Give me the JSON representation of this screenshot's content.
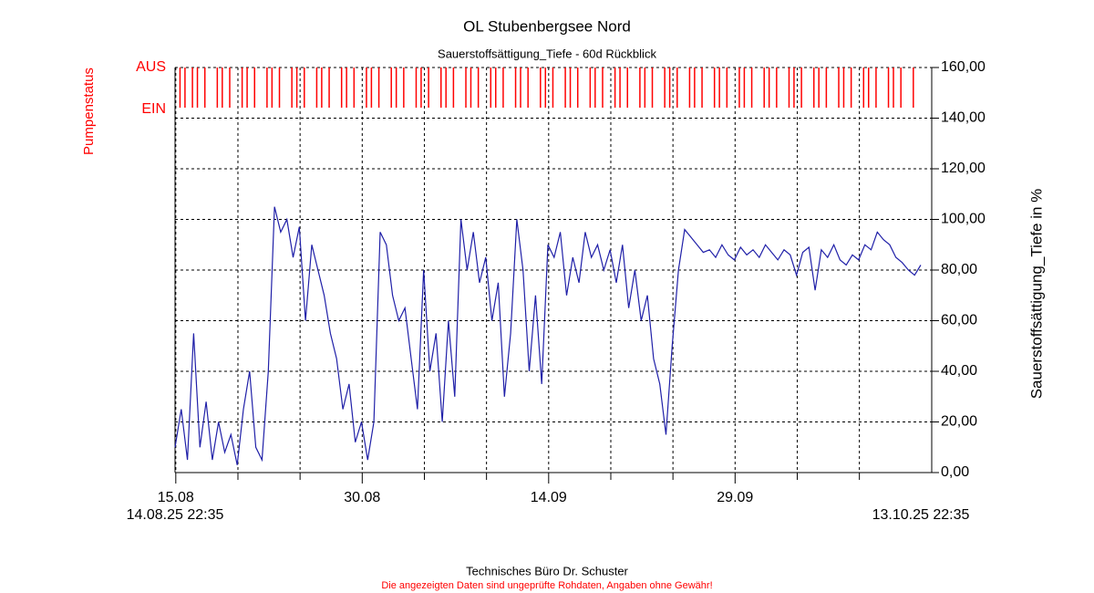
{
  "chart_data": {
    "type": "line",
    "title": "OL Stubenbergsee Nord",
    "subtitle": "Sauerstoffsättigung_Tiefe - 60d Rückblick",
    "y_label": "Sauerstoffsättigung_Tiefe in %",
    "footer": "Technisches Büro Dr. Schuster",
    "disclaimer": "Die angezeigten Daten sind ungeprüfte Rohdaten, Angaben ohne Gewähr!",
    "xlim": [
      0,
      60
    ],
    "xlim_labels": [
      "14.08.25 22:35",
      "13.10.25 22:35"
    ],
    "xticks": [
      {
        "value": 0.06,
        "label": "15.08"
      },
      {
        "value": 15.06,
        "label": "30.08"
      },
      {
        "value": 30.06,
        "label": "14.09"
      },
      {
        "value": 45.06,
        "label": "29.09"
      }
    ],
    "xminorticks": [
      5.06,
      10.06,
      20.06,
      25.06,
      35.06,
      40.06,
      50.06,
      55.06
    ],
    "ylim": [
      0,
      160
    ],
    "yticks": [
      {
        "value": 0,
        "label": "0,00"
      },
      {
        "value": 20,
        "label": "20,00"
      },
      {
        "value": 40,
        "label": "40,00"
      },
      {
        "value": 60,
        "label": "60,00"
      },
      {
        "value": 80,
        "label": "80,00"
      },
      {
        "value": 100,
        "label": "100,00"
      },
      {
        "value": 120,
        "label": "120,00"
      },
      {
        "value": 140,
        "label": "140,00"
      },
      {
        "value": 160,
        "label": "160,00"
      }
    ],
    "grid": true,
    "series": [
      {
        "name": "Sauerstoffsättigung_Tiefe",
        "color": "#2020a8",
        "x": [
          0,
          0.5,
          1,
          1.5,
          2,
          2.5,
          3,
          3.5,
          4,
          4.5,
          5,
          5.5,
          6,
          6.5,
          7,
          7.5,
          8,
          8.5,
          9,
          9.5,
          10,
          10.5,
          11,
          11.5,
          12,
          12.5,
          13,
          13.5,
          14,
          14.5,
          15,
          15.5,
          16,
          16.5,
          17,
          17.5,
          18,
          18.5,
          19,
          19.5,
          20,
          20.5,
          21,
          21.5,
          22,
          22.5,
          23,
          23.5,
          24,
          24.5,
          25,
          25.5,
          26,
          26.5,
          27,
          27.5,
          28,
          28.5,
          29,
          29.5,
          30,
          30.5,
          31,
          31.5,
          32,
          32.5,
          33,
          33.5,
          34,
          34.5,
          35,
          35.5,
          36,
          36.5,
          37,
          37.5,
          38,
          38.5,
          39,
          39.5,
          40,
          40.5,
          41,
          41.5,
          42,
          42.5,
          43,
          43.5,
          44,
          44.5,
          45,
          45.5,
          46,
          46.5,
          47,
          47.5,
          48,
          48.5,
          49,
          49.5,
          50,
          50.5,
          51,
          51.5,
          52,
          52.5,
          53,
          53.5,
          54,
          54.5,
          55,
          55.5,
          56,
          56.5,
          57,
          57.5,
          58,
          58.5,
          59,
          59.5,
          60
        ],
        "values": [
          10,
          25,
          5,
          55,
          10,
          28,
          5,
          20,
          8,
          15,
          3,
          25,
          40,
          10,
          5,
          40,
          105,
          95,
          100,
          85,
          97,
          60,
          90,
          80,
          70,
          55,
          45,
          25,
          35,
          12,
          20,
          5,
          20,
          95,
          90,
          70,
          60,
          65,
          45,
          25,
          80,
          40,
          55,
          20,
          60,
          30,
          100,
          80,
          95,
          75,
          85,
          60,
          75,
          30,
          55,
          100,
          80,
          40,
          70,
          35,
          90,
          85,
          95,
          70,
          85,
          75,
          95,
          85,
          90,
          80,
          88,
          75,
          90,
          65,
          80,
          60,
          70,
          45,
          35,
          15,
          50,
          80,
          96,
          93,
          90,
          87,
          88,
          85,
          90,
          86,
          84,
          89,
          86,
          88,
          85,
          90,
          87,
          84,
          88,
          86,
          78,
          87,
          89,
          72,
          88,
          85,
          90,
          84,
          82,
          86,
          84,
          90,
          88,
          95,
          92,
          90,
          85,
          83,
          80,
          78,
          82
        ]
      }
    ],
    "pump": {
      "name": "Pumpenstatus",
      "color": "#ff0000",
      "levels": [
        "AUS",
        "EIN"
      ],
      "x": [
        0.4,
        0.8,
        1.4,
        1.8,
        2.4,
        3.4,
        3.8,
        4.4,
        5.4,
        5.8,
        6.4,
        7.4,
        7.8,
        8.4,
        9.4,
        9.8,
        10.4,
        11.4,
        11.8,
        12.4,
        13.4,
        13.8,
        14.4,
        15.4,
        15.8,
        16.4,
        17.4,
        17.8,
        18.4,
        19.4,
        19.8,
        20.4,
        21.4,
        21.8,
        22.4,
        23.4,
        23.8,
        24.4,
        25.4,
        25.8,
        26.4,
        27.4,
        27.8,
        28.4,
        29.4,
        29.8,
        30.4,
        31.4,
        31.8,
        32.4,
        33.4,
        33.8,
        34.4,
        35.4,
        35.8,
        36.4,
        37.4,
        37.8,
        38.4,
        39.4,
        39.8,
        40.4,
        41.4,
        41.8,
        42.4,
        43.4,
        43.8,
        44.4,
        45.4,
        45.8,
        46.4,
        47.4,
        47.8,
        48.4,
        49.4,
        49.8,
        50.4,
        51.4,
        51.8,
        52.4,
        53.4,
        53.8,
        54.4,
        55.4,
        55.8,
        56.4,
        57.4,
        57.8,
        58.4,
        59.4
      ]
    }
  }
}
